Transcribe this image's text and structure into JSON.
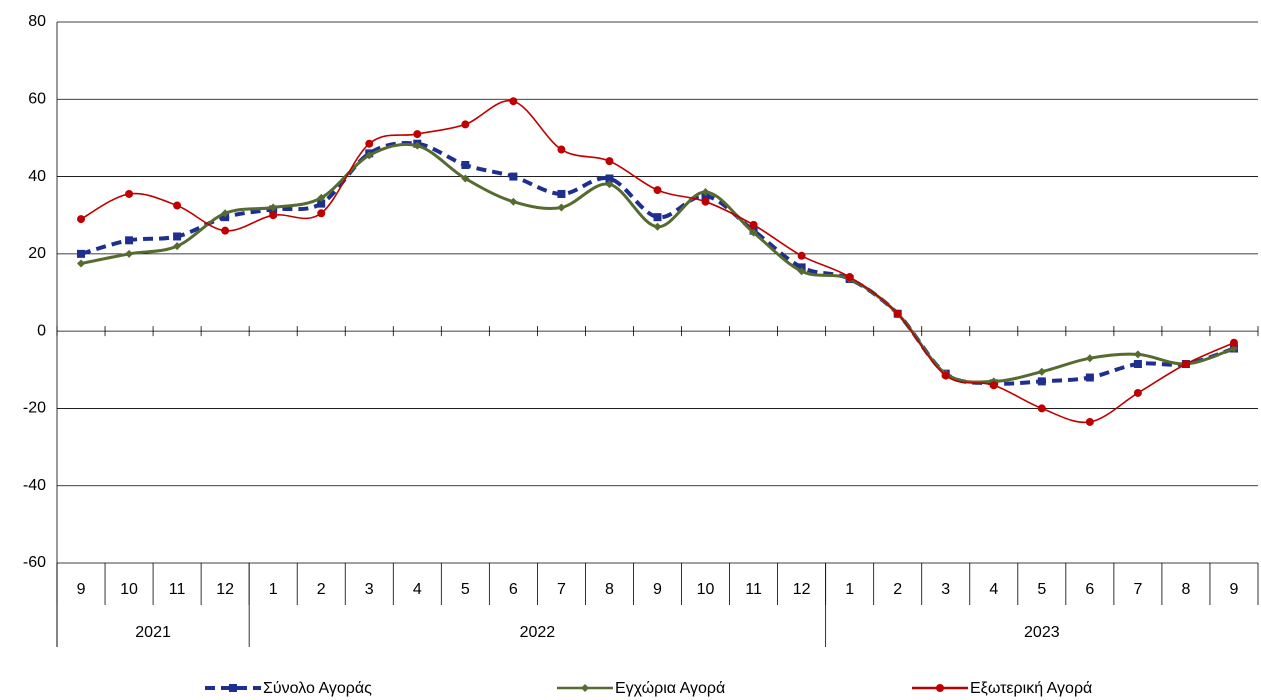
{
  "chart_data": {
    "type": "line",
    "categories": [
      "9",
      "10",
      "11",
      "12",
      "1",
      "2",
      "3",
      "4",
      "5",
      "6",
      "7",
      "8",
      "9",
      "10",
      "11",
      "12",
      "1",
      "2",
      "3",
      "4",
      "5",
      "6",
      "7",
      "8",
      "9"
    ],
    "year_groups": [
      {
        "label": "2021",
        "size": 4
      },
      {
        "label": "2022",
        "size": 12
      },
      {
        "label": "2023",
        "size": 9
      }
    ],
    "ylim": [
      -60,
      80
    ],
    "yticks": [
      -60,
      -40,
      -20,
      0,
      20,
      40,
      60,
      80
    ],
    "grid": true,
    "series": [
      {
        "name": "Σύνολο Αγοράς",
        "color": "#1f2f8f",
        "style": "dashed",
        "marker": "square",
        "values": [
          20,
          23.5,
          24.5,
          29.5,
          31.5,
          33,
          46,
          48.5,
          43,
          40,
          35.5,
          39.5,
          29.5,
          35,
          26,
          16.5,
          13.5,
          4.5,
          -11,
          -13.5,
          -13,
          -12,
          -8.5,
          -8.5,
          -4.5
        ]
      },
      {
        "name": "Εγχώρια Αγορά",
        "color": "#556b2f",
        "style": "solid",
        "marker": "diamond",
        "values": [
          17.5,
          20,
          22,
          30.5,
          32,
          34.5,
          45.5,
          48,
          39.5,
          33.5,
          32,
          38,
          27,
          36,
          25.5,
          15.5,
          13.5,
          4.5,
          -11,
          -13,
          -10.5,
          -7,
          -6,
          -8.5,
          -4.5
        ]
      },
      {
        "name": "Εξωτερική Αγορά",
        "color": "#c00000",
        "style": "solid",
        "marker": "circle",
        "values": [
          29,
          35.5,
          32.5,
          26,
          30,
          30.5,
          48.5,
          51,
          53.5,
          59.5,
          47,
          44,
          36.5,
          33.5,
          27.5,
          19.5,
          14,
          4.5,
          -11.5,
          -14,
          -20,
          -23.5,
          -16,
          -8.5,
          -3
        ]
      }
    ]
  }
}
